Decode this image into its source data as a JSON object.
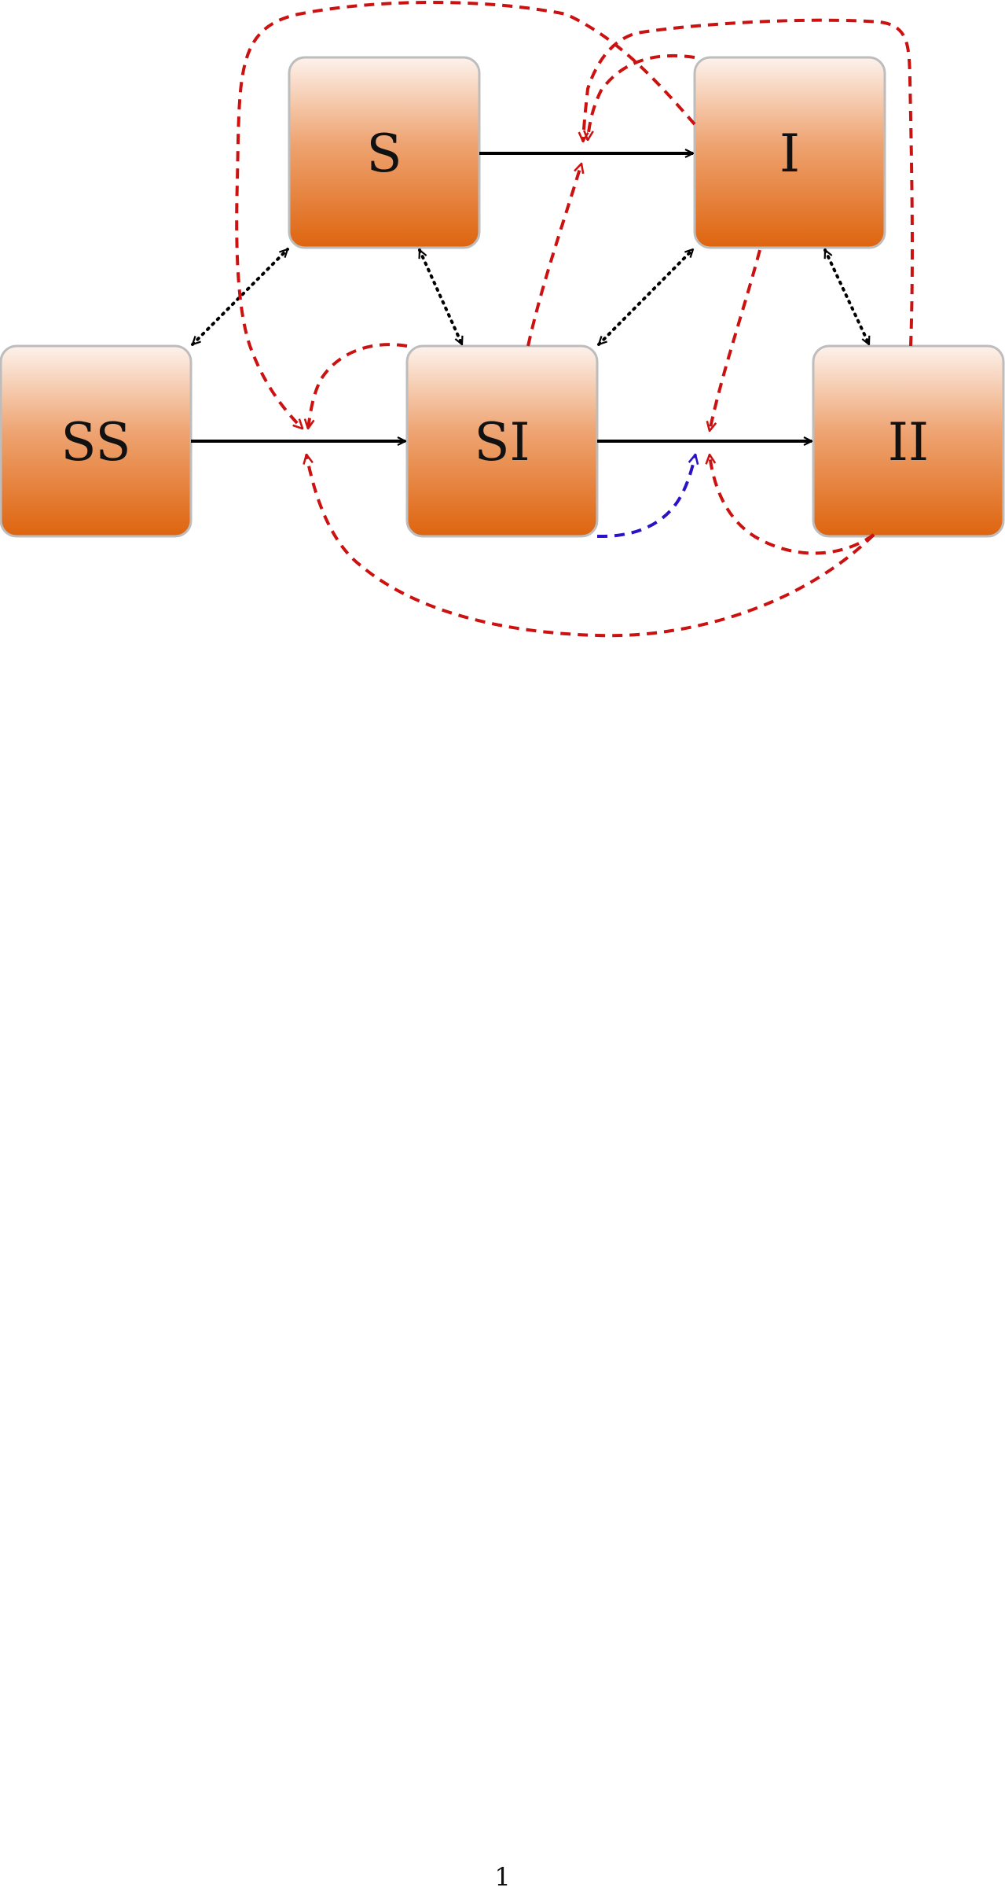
{
  "diagram": {
    "nodes": {
      "S": "S",
      "I": "I",
      "SS": "SS",
      "SI": "SI",
      "II": "II"
    },
    "colors": {
      "node_top": "#fdf2ec",
      "node_bottom": "#de640e",
      "node_border": "#bdbdbd",
      "transition_arrow": "#000000",
      "interaction_arrow": "#cc1111",
      "special_arrow": "#2a12c8",
      "exchange_arrow": "#000000"
    },
    "edges": [
      {
        "name": "s-to-i",
        "from": "S",
        "to": "I",
        "style": "solid"
      },
      {
        "name": "ss-to-si",
        "from": "SS",
        "to": "SI",
        "style": "solid"
      },
      {
        "name": "si-to-ii",
        "from": "SI",
        "to": "II",
        "style": "solid"
      },
      {
        "name": "ss-s",
        "from": "SS",
        "to": "S",
        "style": "dotted"
      },
      {
        "name": "s-si",
        "from": "S",
        "to": "SI",
        "style": "dotted"
      },
      {
        "name": "si-i",
        "from": "SI",
        "to": "I",
        "style": "dotted"
      },
      {
        "name": "i-ii",
        "from": "I",
        "to": "II",
        "style": "dotted"
      }
    ]
  },
  "footer": {
    "page_number": "1"
  }
}
